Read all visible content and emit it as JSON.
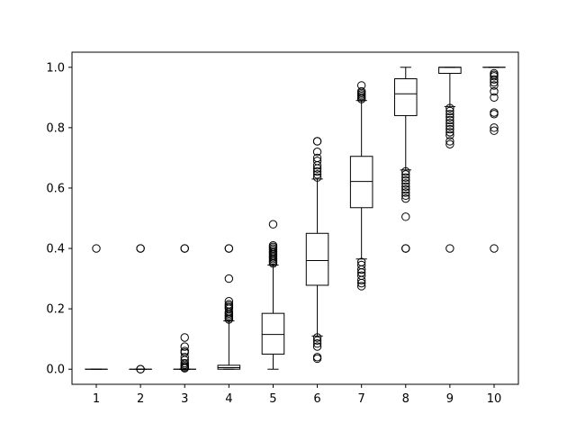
{
  "chart_data": {
    "type": "box",
    "title": "",
    "xlabel": "",
    "ylabel": "",
    "categories": [
      "1",
      "2",
      "3",
      "4",
      "5",
      "6",
      "7",
      "8",
      "9",
      "10"
    ],
    "ylim": [
      -0.05,
      1.05
    ],
    "yticks": [
      0.0,
      0.2,
      0.4,
      0.6,
      0.8,
      1.0
    ],
    "ytick_labels": [
      "0.0",
      "0.2",
      "0.4",
      "0.6",
      "0.8",
      "1.0"
    ],
    "grid": false,
    "legend": "none",
    "series": [
      {
        "boxes": [
          {
            "category": "1",
            "whisker_low": 0.0,
            "q1": 0.0,
            "median": 0.0,
            "q3": 0.0,
            "whisker_high": 0.0,
            "outliers": [
              0.4
            ]
          },
          {
            "category": "2",
            "whisker_low": 0.0,
            "q1": 0.0,
            "median": 0.0,
            "q3": 0.0,
            "whisker_high": 0.0,
            "outliers": [
              0.0,
              0.0,
              0.4,
              0.4
            ]
          },
          {
            "category": "3",
            "whisker_low": 0.0,
            "q1": 0.0,
            "median": 0.0,
            "q3": 0.0,
            "whisker_high": 0.0,
            "outliers": [
              0.003,
              0.006,
              0.01,
              0.015,
              0.02,
              0.03,
              0.04,
              0.055,
              0.06,
              0.075,
              0.105,
              0.4,
              0.4
            ]
          },
          {
            "category": "4",
            "whisker_low": 0.0,
            "q1": 0.0,
            "median": 0.005,
            "q3": 0.013,
            "whisker_high": 0.16,
            "outliers": [
              0.165,
              0.17,
              0.175,
              0.18,
              0.185,
              0.19,
              0.2,
              0.205,
              0.21,
              0.215,
              0.225,
              0.3,
              0.4,
              0.4
            ]
          },
          {
            "category": "5",
            "whisker_low": 0.0,
            "q1": 0.05,
            "median": 0.115,
            "q3": 0.185,
            "whisker_high": 0.345,
            "outliers": [
              0.35,
              0.355,
              0.36,
              0.365,
              0.37,
              0.375,
              0.38,
              0.385,
              0.39,
              0.395,
              0.4,
              0.405,
              0.41,
              0.48
            ]
          },
          {
            "category": "6",
            "whisker_low": 0.11,
            "q1": 0.278,
            "median": 0.36,
            "q3": 0.45,
            "whisker_high": 0.63,
            "outliers": [
              0.035,
              0.04,
              0.075,
              0.085,
              0.095,
              0.105,
              0.635,
              0.645,
              0.655,
              0.665,
              0.675,
              0.69,
              0.7,
              0.72,
              0.755,
              0.755
            ]
          },
          {
            "category": "7",
            "whisker_low": 0.365,
            "q1": 0.535,
            "median": 0.622,
            "q3": 0.705,
            "whisker_high": 0.89,
            "outliers": [
              0.275,
              0.285,
              0.295,
              0.31,
              0.32,
              0.33,
              0.345,
              0.355,
              0.895,
              0.9,
              0.905,
              0.91,
              0.915,
              0.92,
              0.94
            ]
          },
          {
            "category": "8",
            "whisker_low": 0.66,
            "q1": 0.84,
            "median": 0.912,
            "q3": 0.962,
            "whisker_high": 1.0,
            "outliers": [
              0.4,
              0.4,
              0.505,
              0.565,
              0.575,
              0.585,
              0.595,
              0.605,
              0.615,
              0.625,
              0.635,
              0.645,
              0.655
            ]
          },
          {
            "category": "9",
            "whisker_low": 0.87,
            "q1": 0.98,
            "median": 1.0,
            "q3": 1.0,
            "whisker_high": 1.0,
            "outliers": [
              0.4,
              0.745,
              0.755,
              0.775,
              0.785,
              0.795,
              0.805,
              0.815,
              0.825,
              0.835,
              0.845,
              0.855,
              0.865
            ]
          },
          {
            "category": "10",
            "whisker_low": 1.0,
            "q1": 1.0,
            "median": 1.0,
            "q3": 1.0,
            "whisker_high": 1.0,
            "outliers": [
              0.4,
              0.79,
              0.8,
              0.845,
              0.85,
              0.9,
              0.92,
              0.94,
              0.95,
              0.96,
              0.97,
              0.975,
              0.98
            ]
          }
        ]
      }
    ]
  },
  "colors": {
    "box_stroke": "#000000",
    "background": "#ffffff"
  }
}
